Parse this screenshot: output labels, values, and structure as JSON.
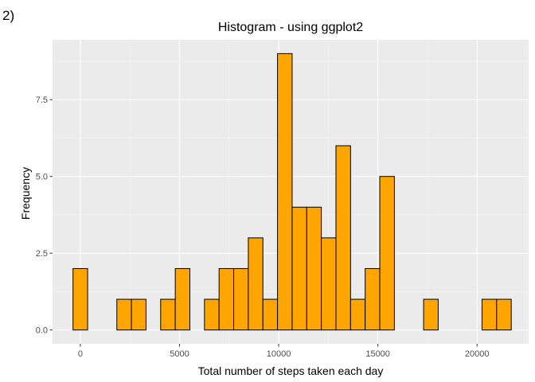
{
  "panel_label": "2)",
  "chart_data": {
    "type": "bar",
    "title": "Histogram - using ggplot2",
    "xlabel": "Total number of steps taken each day",
    "ylabel": "Frequency",
    "bin_width": 736.4,
    "bin_start": -368.2,
    "bin_counts": [
      2,
      0,
      0,
      1,
      1,
      0,
      1,
      2,
      0,
      1,
      2,
      2,
      3,
      1,
      9,
      4,
      4,
      3,
      6,
      1,
      2,
      5,
      0,
      0,
      1,
      0,
      0,
      0,
      1,
      1
    ],
    "xlim": [
      -1400,
      22600
    ],
    "ylim": [
      -0.45,
      9.45
    ],
    "x_ticks": [
      0,
      5000,
      10000,
      15000,
      20000
    ],
    "x_tick_labels": [
      "0",
      "5000",
      "10000",
      "15000",
      "20000"
    ],
    "y_ticks": [
      0,
      2.5,
      5,
      7.5
    ],
    "y_tick_labels": [
      "0.0",
      "2.5",
      "5.0",
      "7.5"
    ],
    "grid": true,
    "colors": {
      "bar_fill": "#FFA500",
      "bar_stroke": "#000000",
      "panel_bg": "#EBEBEB",
      "grid_major": "#FFFFFF",
      "grid_minor": "#F5F5F5",
      "tick_text": "#4D4D4D"
    }
  }
}
